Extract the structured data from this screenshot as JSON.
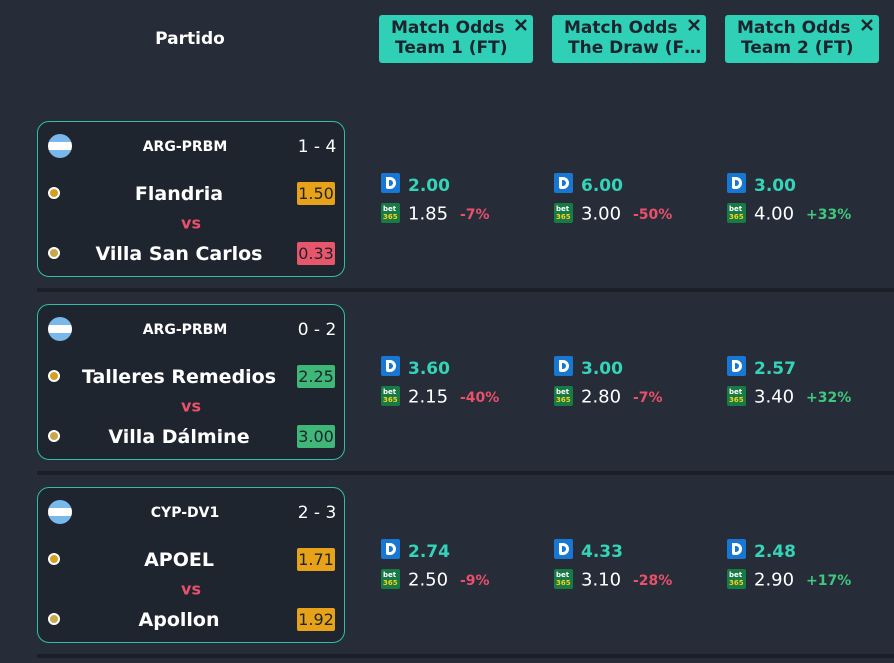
{
  "header": {
    "title": "Partido",
    "columns": [
      {
        "line1": "Match Odds",
        "line2": "Team 1 (FT)"
      },
      {
        "line1": "Match Odds",
        "line2": "The Draw (F…"
      },
      {
        "line1": "Match Odds",
        "line2": "Team 2 (FT)"
      }
    ]
  },
  "bet365_logo": [
    "bet",
    "365"
  ],
  "matches": [
    {
      "league": "ARG-PRBM",
      "score": "1 - 4",
      "vs": "vs",
      "home": {
        "name": "Flandria",
        "rating": "1.50",
        "rating_color": "#e7a21a"
      },
      "away": {
        "name": "Villa San Carlos",
        "rating": "0.33",
        "rating_color": "#e8566c"
      },
      "odds": [
        {
          "primary": "2.00",
          "bet365": "1.85",
          "change": "-7%"
        },
        {
          "primary": "6.00",
          "bet365": "3.00",
          "change": "-50%"
        },
        {
          "primary": "3.00",
          "bet365": "4.00",
          "change": "+33%"
        }
      ]
    },
    {
      "league": "ARG-PRBM",
      "score": "0 - 2",
      "vs": "vs",
      "home": {
        "name": "Talleres Remedios",
        "rating": "2.25",
        "rating_color": "#3fb776"
      },
      "away": {
        "name": "Villa Dálmine",
        "rating": "3.00",
        "rating_color": "#3fb776"
      },
      "odds": [
        {
          "primary": "3.60",
          "bet365": "2.15",
          "change": "-40%"
        },
        {
          "primary": "3.00",
          "bet365": "2.80",
          "change": "-7%"
        },
        {
          "primary": "2.57",
          "bet365": "3.40",
          "change": "+32%"
        }
      ]
    },
    {
      "league": "CYP-DV1",
      "score": "2 - 3",
      "vs": "vs",
      "home": {
        "name": "APOEL",
        "rating": "1.71",
        "rating_color": "#e7a21a"
      },
      "away": {
        "name": "Apollon",
        "rating": "1.92",
        "rating_color": "#e7a21a"
      },
      "odds": [
        {
          "primary": "2.74",
          "bet365": "2.50",
          "change": "-9%"
        },
        {
          "primary": "4.33",
          "bet365": "3.10",
          "change": "-28%"
        },
        {
          "primary": "2.48",
          "bet365": "2.90",
          "change": "+17%"
        }
      ]
    }
  ]
}
